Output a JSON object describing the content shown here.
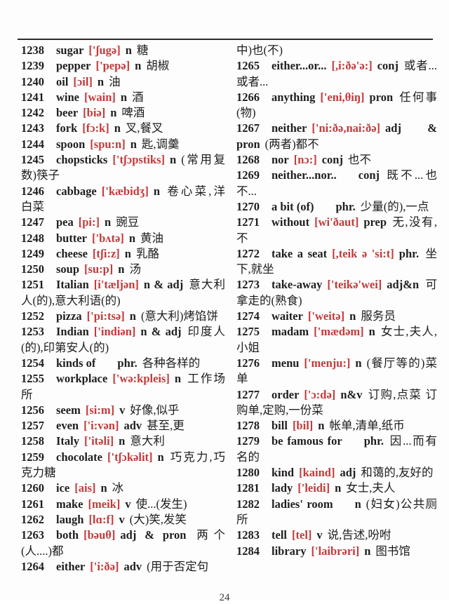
{
  "page": {
    "number": "24"
  },
  "colors": {
    "phonetic_red": "#c23b3b",
    "text_black": "#1e1e1e",
    "rule_gray": "#2b2b2b"
  },
  "columns": [
    {
      "entries": [
        {
          "num": "1238",
          "word": "sugar",
          "phon": "['ʃugə]",
          "pos": "n",
          "meaning": "糖"
        },
        {
          "num": "1239",
          "word": "pepper",
          "phon": "['pepə]",
          "pos": "n",
          "meaning": "胡椒"
        },
        {
          "num": "1240",
          "word": "oil",
          "phon": "[ɔil]",
          "pos": "n",
          "meaning": "油"
        },
        {
          "num": "1241",
          "word": "wine",
          "phon": "[wain]",
          "pos": "n",
          "meaning": "酒"
        },
        {
          "num": "1242",
          "word": "beer",
          "phon": "[biə]",
          "pos": "n",
          "meaning": "啤酒"
        },
        {
          "num": "1243",
          "word": "fork",
          "phon": "[fɔ:k]",
          "pos": "n",
          "meaning": "叉,餐叉"
        },
        {
          "num": "1244",
          "word": "spoon",
          "phon": "[spu:n]",
          "pos": "n",
          "meaning": "匙,调羹"
        },
        {
          "num": "1245",
          "word": "chopsticks",
          "phon": "['tʃɔpstiks]",
          "pos": "n",
          "meaning": "(常用复数)筷子"
        },
        {
          "num": "1246",
          "word": "cabbage",
          "phon": "['kæbidʒ]",
          "pos": "n",
          "meaning": "卷心菜,洋白菜"
        },
        {
          "num": "1247",
          "word": "pea",
          "phon": "[pi:]",
          "pos": "n",
          "meaning": "豌豆"
        },
        {
          "num": "1248",
          "word": "butter",
          "phon": "['bʌtə]",
          "pos": "n",
          "meaning": "黄油"
        },
        {
          "num": "1249",
          "word": "cheese",
          "phon": "[tʃi:z]",
          "pos": "n",
          "meaning": "乳酪"
        },
        {
          "num": "1250",
          "word": "soup",
          "phon": "[su:p]",
          "pos": "n",
          "meaning": "汤"
        },
        {
          "num": "1251",
          "word": "Italian",
          "phon": "[i'tæljən]",
          "pos": "n & adj",
          "meaning": "意大利人(的),意大利语(的)"
        },
        {
          "num": "1252",
          "word": "pizza",
          "phon": "['pi:tsə]",
          "pos": "n",
          "meaning": "(意大利)烤馅饼"
        },
        {
          "num": "1253",
          "word": "Indian",
          "phon": "['indiən]",
          "pos": "n & adj",
          "meaning": "印度人(的),印第安人(的)"
        },
        {
          "num": "1254",
          "word": "kinds of",
          "phon": "",
          "pos": "phr.",
          "meaning": "各种各样的"
        },
        {
          "num": "1255",
          "word": "workplace",
          "phon": "['wə:kpleis]",
          "pos": "n",
          "meaning": "工作场所"
        },
        {
          "num": "1256",
          "word": "seem",
          "phon": "[si:m]",
          "pos": "v",
          "meaning": "好像,似乎"
        },
        {
          "num": "1257",
          "word": "even",
          "phon": "['i:vən]",
          "pos": "adv",
          "meaning": "甚至,更"
        },
        {
          "num": "1258",
          "word": "Italy",
          "phon": "['itəli]",
          "pos": "n",
          "meaning": "意大利"
        },
        {
          "num": "1259",
          "word": "chocolate",
          "phon": "['tʃɔkəlit]",
          "pos": "n",
          "meaning": "巧克力,巧克力糖"
        },
        {
          "num": "1260",
          "word": "ice",
          "phon": "[ais]",
          "pos": "n",
          "meaning": "冰"
        },
        {
          "num": "1261",
          "word": "make",
          "phon": "[meik]",
          "pos": "v",
          "meaning": "使...(发生)"
        },
        {
          "num": "1262",
          "word": "laugh",
          "phon": "[lɑ:f]",
          "pos": "v",
          "meaning": "(大)笑,发笑"
        },
        {
          "num": "1263",
          "word": "both",
          "phon": "[bəuθ]",
          "pos": "adj & pron",
          "meaning": "两个(人....)都"
        },
        {
          "num": "1264",
          "word": "either",
          "phon": "['i:ðə]",
          "pos": "adv",
          "meaning": "(用于否定句"
        }
      ]
    },
    {
      "entries": [
        {
          "num": "",
          "word": "",
          "phon": "",
          "pos": "",
          "meaning": "中)也(不)"
        },
        {
          "num": "1265",
          "word": "either...or...",
          "phon": "[,i:ðə'ə:]",
          "pos": "conj",
          "meaning": "或者...或者..."
        },
        {
          "num": "1266",
          "word": "anything",
          "phon": "['eni,θiŋ]",
          "pos": "pron",
          "meaning": "任何事(物)"
        },
        {
          "num": "1267",
          "word": "neither",
          "phon": "['ni:ðə,nai:ðə]",
          "pos": "adj & pron",
          "meaning": "(两者)都不"
        },
        {
          "num": "1268",
          "word": "nor",
          "phon": "[nɔ:]",
          "pos": "conj",
          "meaning": "也不"
        },
        {
          "num": "1269",
          "word": "neither...nor..",
          "phon": "",
          "pos": "conj",
          "meaning": "既不...也不..."
        },
        {
          "num": "1270",
          "word": "a bit (of)",
          "phon": "",
          "pos": "phr.",
          "meaning": "少量(的),一点"
        },
        {
          "num": "1271",
          "word": "without",
          "phon": "[wi'ðaut]",
          "pos": "prep",
          "meaning": "无,没有,不"
        },
        {
          "num": "1272",
          "word": "take a seat",
          "phon": "[,teik ə 'si:t]",
          "pos": "phr.",
          "meaning": "坐下,就坐"
        },
        {
          "num": "1273",
          "word": "take-away",
          "phon": "['teikə'wei]",
          "pos": "adj&n",
          "meaning": "可拿走的(熟食)"
        },
        {
          "num": "1274",
          "word": "waiter",
          "phon": "['weitə]",
          "pos": "n",
          "meaning": "服务员"
        },
        {
          "num": "1275",
          "word": "madam",
          "phon": "['mædəm]",
          "pos": "n",
          "meaning": "女士,夫人,小姐"
        },
        {
          "num": "1276",
          "word": "menu",
          "phon": "['menju:]",
          "pos": "n",
          "meaning": "(餐厅等的)菜单"
        },
        {
          "num": "1277",
          "word": "order",
          "phon": "['ɔ:də]",
          "pos": "n&v",
          "meaning": "订购,点菜 订购单,定购,一份菜"
        },
        {
          "num": "1278",
          "word": "bill",
          "phon": "[bil]",
          "pos": "n",
          "meaning": "帐单,清单,纸币"
        },
        {
          "num": "1279",
          "word": "be famous for",
          "phon": "",
          "pos": "phr.",
          "meaning": "因...而有名的"
        },
        {
          "num": "1280",
          "word": "kind",
          "phon": "[kaind]",
          "pos": "adj",
          "meaning": "和蔼的,友好的"
        },
        {
          "num": "1281",
          "word": "lady",
          "phon": "['leidi]",
          "pos": "n",
          "meaning": "女士,夫人"
        },
        {
          "num": "1282",
          "word": "ladies' room",
          "phon": "",
          "pos": "n",
          "meaning": "(妇女)公共厕所"
        },
        {
          "num": "1283",
          "word": "tell",
          "phon": "[tel]",
          "pos": "v",
          "meaning": "说,告述,吩咐"
        },
        {
          "num": "1284",
          "word": "library",
          "phon": "['laibrəri]",
          "pos": "n",
          "meaning": "图书馆"
        }
      ]
    }
  ]
}
